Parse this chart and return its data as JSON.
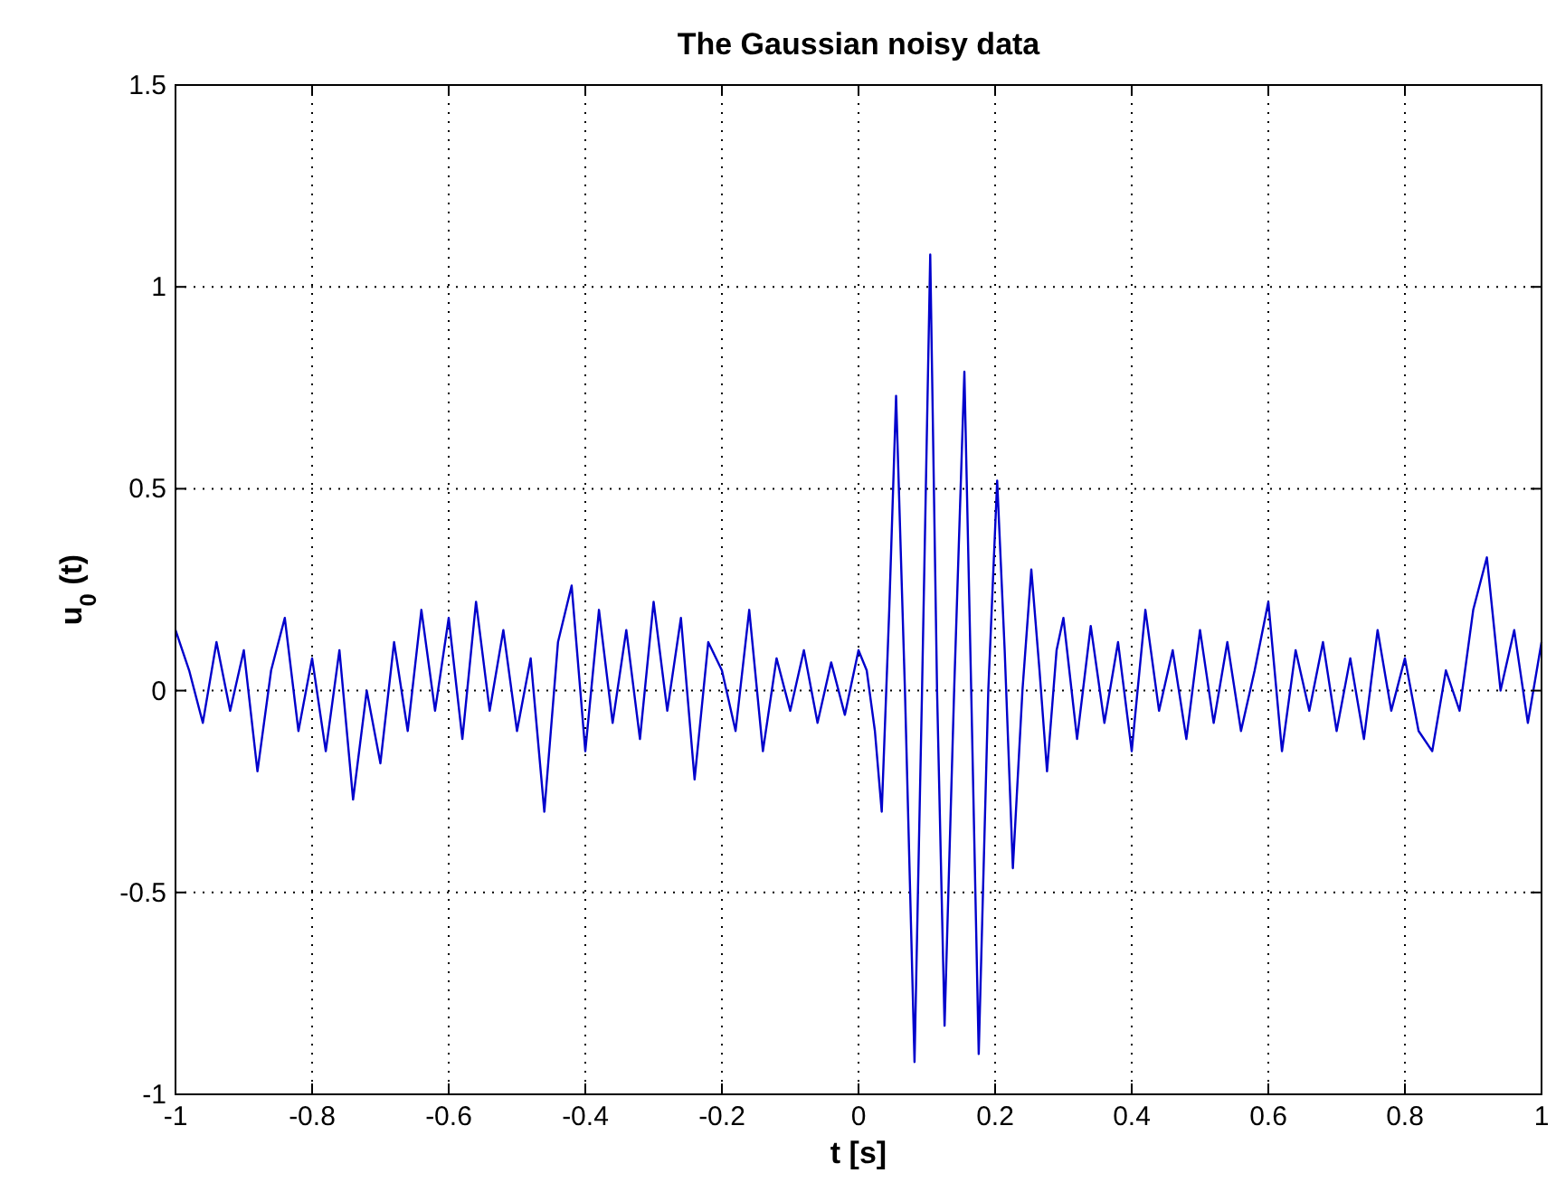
{
  "chart_data": {
    "type": "line",
    "title": "The Gaussian noisy data",
    "xlabel": "t [s]",
    "ylabel": "u$_{0}$ (t)",
    "xlim": [
      -1,
      1
    ],
    "xticks": [
      -1,
      -0.8,
      -0.6,
      -0.4,
      -0.2,
      0,
      0.2,
      0.4,
      0.6,
      0.8,
      1
    ],
    "ylim": [
      -1,
      1.5
    ],
    "yticks": [
      -1,
      -0.5,
      0,
      0.5,
      1,
      1.5
    ],
    "grid": true,
    "line_style": "solid",
    "series": [
      {
        "color": "#0000cc",
        "x": [
          -1,
          -0.98,
          -0.96,
          -0.94,
          -0.92,
          -0.9,
          -0.88,
          -0.86,
          -0.84,
          -0.82,
          -0.8,
          -0.78,
          -0.76,
          -0.74,
          -0.72,
          -0.7,
          -0.68,
          -0.66,
          -0.64,
          -0.62,
          -0.6,
          -0.58,
          -0.56,
          -0.54,
          -0.52,
          -0.5,
          -0.48,
          -0.46,
          -0.44,
          -0.42,
          -0.4,
          -0.38,
          -0.36,
          -0.34,
          -0.32,
          -0.3,
          -0.28,
          -0.26,
          -0.24,
          -0.22,
          -0.2,
          -0.18,
          -0.16,
          -0.14,
          -0.12,
          -0.1,
          -0.08,
          -0.06,
          -0.04,
          -0.02,
          0,
          0.012,
          0.024,
          0.034,
          0.045,
          0.055,
          0.068,
          0.082,
          0.093,
          0.105,
          0.115,
          0.126,
          0.14,
          0.155,
          0.165,
          0.176,
          0.19,
          0.203,
          0.214,
          0.226,
          0.24,
          0.253,
          0.265,
          0.276,
          0.29,
          0.3,
          0.32,
          0.34,
          0.36,
          0.38,
          0.4,
          0.42,
          0.44,
          0.46,
          0.48,
          0.5,
          0.52,
          0.54,
          0.56,
          0.58,
          0.6,
          0.62,
          0.64,
          0.66,
          0.68,
          0.7,
          0.72,
          0.74,
          0.76,
          0.78,
          0.8,
          0.82,
          0.84,
          0.86,
          0.88,
          0.9,
          0.92,
          0.94,
          0.96,
          0.98,
          1
        ],
        "values": [
          0.15,
          0.05,
          -0.08,
          0.12,
          -0.05,
          0.1,
          -0.2,
          0.05,
          0.18,
          -0.1,
          0.08,
          -0.15,
          0.1,
          -0.27,
          0,
          -0.18,
          0.12,
          -0.1,
          0.2,
          -0.05,
          0.18,
          -0.12,
          0.22,
          -0.05,
          0.15,
          -0.1,
          0.08,
          -0.3,
          0.12,
          0.26,
          -0.15,
          0.2,
          -0.08,
          0.15,
          -0.12,
          0.22,
          -0.05,
          0.18,
          -0.22,
          0.12,
          0.05,
          -0.1,
          0.2,
          -0.15,
          0.08,
          -0.05,
          0.1,
          -0.08,
          0.07,
          -0.06,
          0.1,
          0.05,
          -0.1,
          -0.3,
          0.2,
          0.73,
          0,
          -0.92,
          0,
          1.08,
          0,
          -0.83,
          0,
          0.79,
          0,
          -0.9,
          0,
          0.52,
          0.1,
          -0.44,
          0,
          0.3,
          0.05,
          -0.2,
          0.1,
          0.18,
          -0.12,
          0.16,
          -0.08,
          0.12,
          -0.15,
          0.2,
          -0.05,
          0.1,
          -0.12,
          0.15,
          -0.08,
          0.12,
          -0.1,
          0.05,
          0.22,
          -0.15,
          0.1,
          -0.05,
          0.12,
          -0.1,
          0.08,
          -0.12,
          0.15,
          -0.05,
          0.08,
          -0.1,
          -0.15,
          0.05,
          -0.05,
          0.2,
          0.33,
          0,
          0.15,
          -0.08,
          0.12
        ]
      }
    ]
  }
}
